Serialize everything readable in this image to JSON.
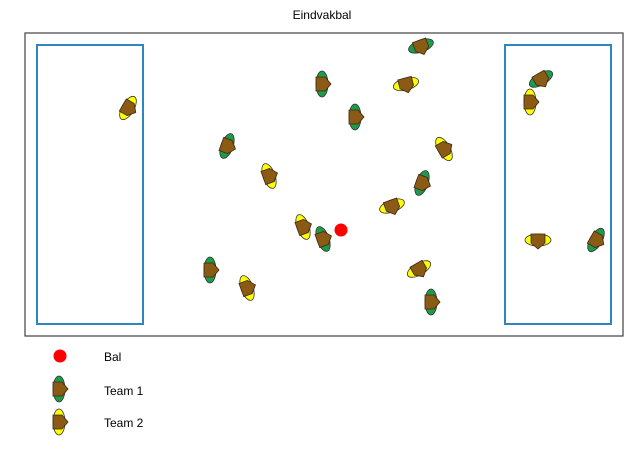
{
  "title": "Eindvakbal",
  "colors": {
    "team1": "#1e9a4b",
    "team2": "#ffff00",
    "player_body": "#8b5a14",
    "ball": "#ff0000",
    "zone": "#2e86c1",
    "field_border": "#404040"
  },
  "legend": {
    "ball": "Bal",
    "team1": "Team 1",
    "team2": "Team 2"
  }
}
